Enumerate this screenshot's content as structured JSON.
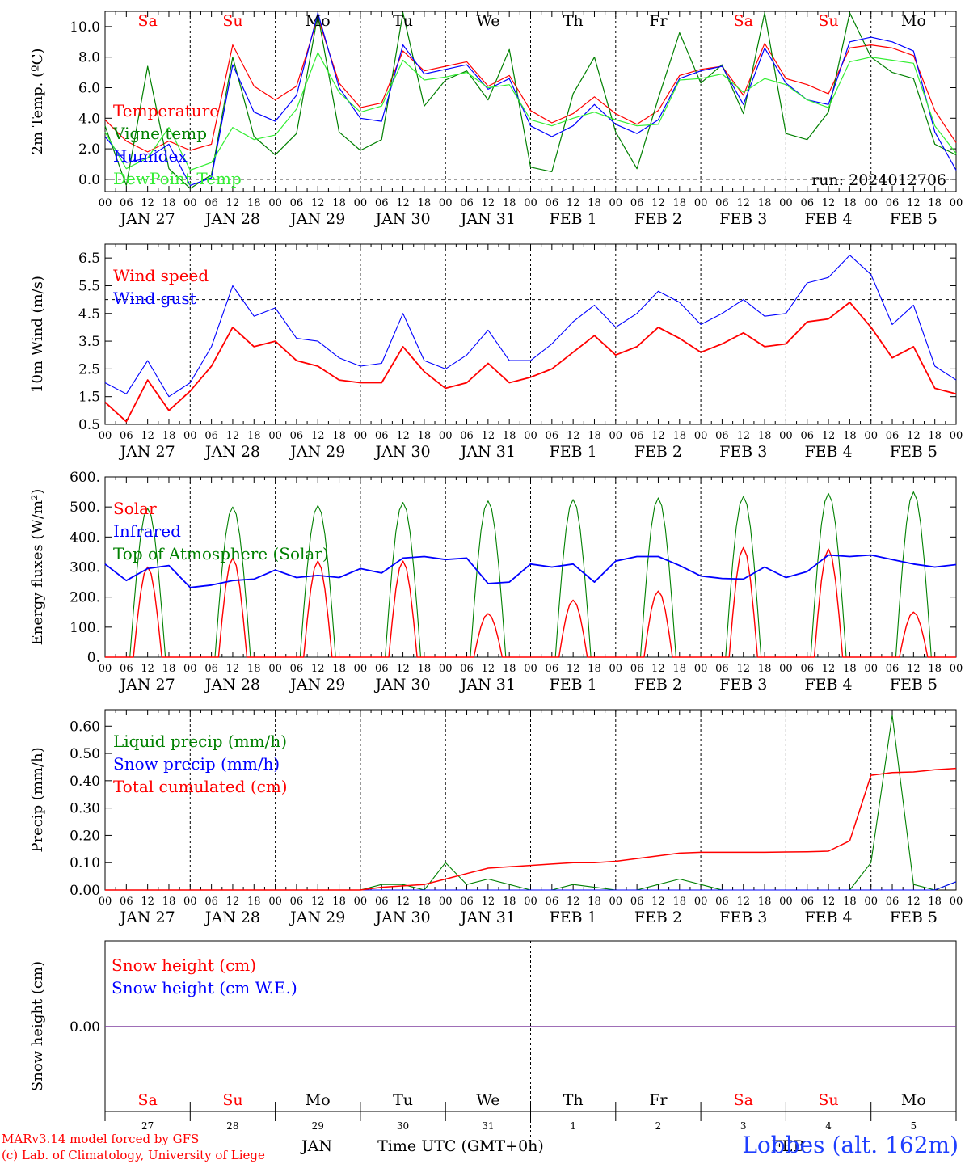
{
  "days": {
    "weekday_labels": [
      "Sa",
      "Su",
      "Mo",
      "Tu",
      "We",
      "Th",
      "Fr",
      "Sa",
      "Su",
      "Mo"
    ],
    "weekend_flags": [
      true,
      true,
      false,
      false,
      false,
      false,
      false,
      true,
      true,
      false
    ],
    "date_labels": [
      "JAN 27",
      "JAN 28",
      "JAN 29",
      "JAN 30",
      "JAN 31",
      "FEB  1",
      "FEB  2",
      "FEB  3",
      "FEB  4",
      "FEB  5"
    ],
    "day_numbers": [
      "27",
      "28",
      "29",
      "30",
      "31",
      "1",
      "2",
      "3",
      "4",
      "5"
    ],
    "hour_ticks": [
      "00",
      "06",
      "12",
      "18"
    ],
    "final_tick": "00"
  },
  "colors": {
    "red": "#ff0000",
    "dark_green": "#008000",
    "blue": "#0000ff",
    "light_green": "#33ee33",
    "purple": "#7f3f9f"
  },
  "chart_data": [
    {
      "type": "line",
      "ylabel": "2m Temp. (ºC)",
      "ylim": [
        -0.8,
        11
      ],
      "yticks": [
        "0.0",
        "2.0",
        "4.0",
        "6.0",
        "8.0",
        "10.0"
      ],
      "ytick_values": [
        0,
        2,
        4,
        6,
        8,
        10
      ],
      "reference_line": 0,
      "annotation": "run: 2024012706",
      "x_hours": [
        0,
        6,
        12,
        18,
        24,
        30,
        36,
        42,
        48,
        54,
        60,
        66,
        72,
        78,
        84,
        90,
        96,
        102,
        108,
        114,
        120,
        126,
        132,
        138,
        144,
        150,
        156,
        162,
        168,
        174,
        180,
        186,
        192,
        198,
        204,
        210,
        216,
        222,
        228,
        234,
        240
      ],
      "series": [
        {
          "name": "Temperature",
          "color": "#ff0000",
          "values": [
            3.9,
            2.5,
            1.8,
            2.5,
            1.9,
            2.3,
            8.8,
            6.1,
            5.2,
            6.1,
            10.6,
            6.3,
            4.7,
            5.0,
            8.4,
            7.1,
            7.4,
            7.7,
            6.1,
            6.8,
            4.5,
            3.7,
            4.3,
            5.4,
            4.3,
            3.6,
            4.5,
            6.8,
            7.2,
            7.4,
            5.5,
            8.9,
            6.6,
            6.2,
            5.6,
            8.6,
            8.8,
            8.6,
            8.1,
            4.5,
            2.4
          ]
        },
        {
          "name": "Vigne temp",
          "color": "#008000",
          "values": [
            3.5,
            -0.4,
            7.4,
            0.7,
            -0.6,
            0.3,
            8.0,
            2.8,
            1.6,
            3.0,
            10.8,
            3.1,
            1.9,
            2.6,
            10.9,
            4.8,
            6.5,
            7.1,
            5.2,
            8.5,
            0.8,
            0.5,
            5.6,
            8.0,
            3.1,
            0.7,
            5.3,
            9.6,
            6.3,
            7.5,
            4.3,
            10.9,
            3.0,
            2.6,
            4.4,
            10.9,
            8.0,
            7.0,
            6.6,
            2.3,
            1.6
          ]
        },
        {
          "name": "Humidex",
          "color": "#0000ff",
          "values": [
            2.8,
            1.1,
            1.4,
            2.3,
            -0.4,
            0.1,
            7.5,
            4.4,
            3.8,
            5.5,
            10.9,
            6.0,
            4.0,
            3.8,
            8.8,
            6.9,
            7.2,
            7.5,
            5.9,
            6.6,
            3.5,
            2.8,
            3.5,
            4.9,
            3.6,
            3.0,
            3.9,
            6.6,
            7.1,
            7.4,
            4.9,
            8.6,
            6.3,
            5.2,
            4.9,
            9.0,
            9.3,
            9.0,
            8.4,
            3.1,
            0.6
          ]
        },
        {
          "name": "DewPoint Temp",
          "color": "#33ee33",
          "values": [
            3.1,
            0.7,
            1.4,
            3.4,
            0.6,
            1.1,
            3.4,
            2.6,
            2.9,
            4.6,
            8.3,
            5.7,
            4.4,
            4.8,
            7.8,
            6.5,
            6.7,
            7.0,
            6.0,
            6.2,
            3.9,
            3.5,
            4.0,
            4.4,
            3.9,
            3.5,
            3.6,
            6.5,
            6.6,
            6.9,
            5.7,
            6.6,
            6.2,
            5.2,
            4.7,
            7.7,
            8.0,
            7.8,
            7.6,
            3.5,
            1.7
          ]
        }
      ]
    },
    {
      "type": "line",
      "ylabel": "10m Wind (m/s)",
      "ylim": [
        0.5,
        7.0
      ],
      "yticks": [
        "0.5",
        "1.5",
        "2.5",
        "3.5",
        "4.5",
        "5.5",
        "6.5"
      ],
      "ytick_values": [
        0.5,
        1.5,
        2.5,
        3.5,
        4.5,
        5.5,
        6.5
      ],
      "reference_line": 5,
      "x_hours": [
        0,
        6,
        12,
        18,
        24,
        30,
        36,
        42,
        48,
        54,
        60,
        66,
        72,
        78,
        84,
        90,
        96,
        102,
        108,
        114,
        120,
        126,
        132,
        138,
        144,
        150,
        156,
        162,
        168,
        174,
        180,
        186,
        192,
        198,
        204,
        210,
        216,
        222,
        228,
        234,
        240
      ],
      "series": [
        {
          "name": "Wind speed",
          "color": "#ff0000",
          "values": [
            1.3,
            0.6,
            2.1,
            1.0,
            1.7,
            2.6,
            4.0,
            3.3,
            3.5,
            2.8,
            2.6,
            2.1,
            2.0,
            2.0,
            3.3,
            2.4,
            1.8,
            2.0,
            2.7,
            2.0,
            2.2,
            2.5,
            3.1,
            3.7,
            3.0,
            3.3,
            4.0,
            3.6,
            3.1,
            3.4,
            3.8,
            3.3,
            3.4,
            4.2,
            4.3,
            4.9,
            4.0,
            2.9,
            3.3,
            1.8,
            1.6
          ]
        },
        {
          "name": "Wind gust",
          "color": "#0000ff",
          "values": [
            2.0,
            1.6,
            2.8,
            1.5,
            2.0,
            3.3,
            5.5,
            4.4,
            4.7,
            3.6,
            3.5,
            2.9,
            2.6,
            2.7,
            4.5,
            2.8,
            2.5,
            3.0,
            3.9,
            2.8,
            2.8,
            3.4,
            4.2,
            4.8,
            4.0,
            4.5,
            5.3,
            4.9,
            4.1,
            4.5,
            5.0,
            4.4,
            4.5,
            5.6,
            5.8,
            6.6,
            5.9,
            4.1,
            4.8,
            2.6,
            2.1
          ]
        }
      ]
    },
    {
      "type": "line",
      "ylabel": "Energy fluxes (W/m²)",
      "ylim": [
        0,
        600
      ],
      "yticks": [
        "0.",
        "100.",
        "200.",
        "300.",
        "400.",
        "500.",
        "600."
      ],
      "ytick_values": [
        0,
        100,
        200,
        300,
        400,
        500,
        600
      ],
      "x_hours_infrared": [
        0,
        6,
        12,
        18,
        24,
        30,
        36,
        42,
        48,
        54,
        60,
        66,
        72,
        78,
        84,
        90,
        96,
        102,
        108,
        114,
        120,
        126,
        132,
        138,
        144,
        150,
        156,
        162,
        168,
        174,
        180,
        186,
        192,
        198,
        204,
        210,
        216,
        222,
        228,
        234,
        240
      ],
      "infrared_values": [
        310,
        255,
        295,
        305,
        232,
        240,
        255,
        260,
        290,
        265,
        272,
        265,
        295,
        280,
        330,
        335,
        325,
        330,
        245,
        250,
        310,
        300,
        310,
        250,
        320,
        335,
        335,
        305,
        270,
        262,
        260,
        300,
        265,
        285,
        340,
        335,
        340,
        325,
        310,
        300,
        308
      ],
      "daily_peaks_solar": [
        300,
        330,
        320,
        320,
        145,
        190,
        220,
        365,
        360,
        150
      ],
      "daily_peaks_toa": [
        495,
        500,
        505,
        515,
        520,
        525,
        530,
        535,
        545,
        550
      ],
      "series": [
        {
          "name": "Solar",
          "color": "#ff0000"
        },
        {
          "name": "Infrared",
          "color": "#0000ff"
        },
        {
          "name": "Top of Atmosphere (Solar)",
          "color": "#008000"
        }
      ]
    },
    {
      "type": "line",
      "ylabel": "Precip (mm/h)",
      "ylim": [
        0,
        0.66
      ],
      "yticks": [
        "0.00",
        "0.10",
        "0.20",
        "0.30",
        "0.40",
        "0.50",
        "0.60"
      ],
      "ytick_values": [
        0,
        0.1,
        0.2,
        0.3,
        0.4,
        0.5,
        0.6
      ],
      "x_hours": [
        0,
        6,
        12,
        18,
        24,
        30,
        36,
        42,
        48,
        54,
        60,
        66,
        72,
        78,
        84,
        90,
        96,
        102,
        108,
        114,
        120,
        126,
        132,
        138,
        144,
        150,
        156,
        162,
        168,
        174,
        180,
        186,
        192,
        198,
        204,
        210,
        216,
        222,
        228,
        234,
        240
      ],
      "series": [
        {
          "name": "Liquid precip (mm/h)",
          "color": "#008000",
          "values": [
            0,
            0,
            0,
            0,
            0,
            0,
            0,
            0,
            0,
            0,
            0,
            0,
            0,
            0.02,
            0.02,
            0,
            0.1,
            0.02,
            0.04,
            0.02,
            0,
            0,
            0.02,
            0.01,
            0,
            0,
            0.02,
            0.04,
            0.02,
            0,
            0,
            0,
            0,
            0,
            0,
            0,
            0.1,
            0.64,
            0.02,
            0,
            0.03
          ]
        },
        {
          "name": "Snow precip (mm/h)",
          "color": "#0000ff",
          "values": [
            0,
            0,
            0,
            0,
            0,
            0,
            0,
            0,
            0,
            0,
            0,
            0,
            0,
            0,
            0,
            0,
            0,
            0,
            0,
            0,
            0,
            0,
            0,
            0,
            0,
            0,
            0,
            0,
            0,
            0,
            0,
            0,
            0,
            0,
            0,
            0,
            0,
            0,
            0,
            0,
            0.03
          ]
        },
        {
          "name": "Total cumulated (cm)",
          "color": "#ff0000",
          "values": [
            0,
            0,
            0,
            0,
            0,
            0,
            0,
            0,
            0,
            0,
            0,
            0,
            0,
            0.01,
            0.015,
            0.02,
            0.04,
            0.06,
            0.08,
            0.085,
            0.09,
            0.095,
            0.1,
            0.1,
            0.105,
            0.115,
            0.125,
            0.135,
            0.138,
            0.138,
            0.138,
            0.138,
            0.139,
            0.14,
            0.142,
            0.18,
            0.42,
            0.43,
            0.432,
            0.44,
            0.445
          ]
        }
      ]
    },
    {
      "type": "line",
      "ylabel": "Snow height (cm)",
      "yticks": [
        "0.00"
      ],
      "ytick_values": [
        0
      ],
      "series": [
        {
          "name": "Snow height (cm)",
          "color": "#ff0000",
          "values": [
            0,
            0
          ]
        },
        {
          "name": "Snow height (cm W.E.)",
          "color": "#0000ff",
          "values": [
            0,
            0
          ]
        }
      ]
    }
  ],
  "xaxis": {
    "month_left": "JAN",
    "month_right": "FEB",
    "xlabel": "Time UTC (GMT+0h)"
  },
  "credits": {
    "line1": "MARv3.14 model forced by GFS",
    "line2": "(c) Lab. of Climatology, University of Liege"
  },
  "station": "Lobbes (alt. 162m)"
}
